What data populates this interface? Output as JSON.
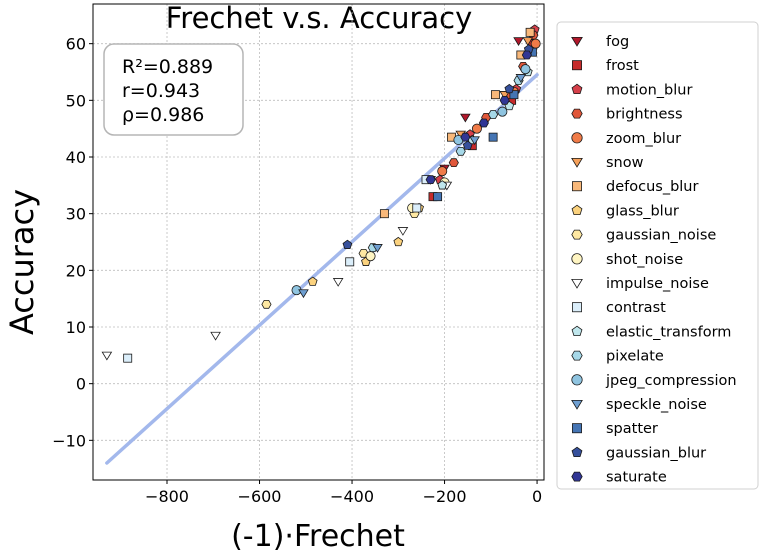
{
  "chart_data": {
    "type": "scatter",
    "title": "Frechet  v.s.  Accuracy",
    "xlabel": "(-1)·Frechet",
    "ylabel": "Accuracy",
    "xlim": [
      -960,
      15
    ],
    "ylim": [
      -17,
      67
    ],
    "xticks": [
      -800,
      -600,
      -400,
      -200,
      0
    ],
    "xtick_labels": [
      "−800",
      "−600",
      "−400",
      "−200",
      "0"
    ],
    "yticks": [
      -10,
      0,
      10,
      20,
      30,
      40,
      50,
      60
    ],
    "ytick_labels": [
      "−10",
      "0",
      "10",
      "20",
      "30",
      "40",
      "50",
      "60"
    ],
    "grid": true,
    "legend_position": "outside-right",
    "stats": [
      "R²=0.889",
      "r=0.943",
      "ρ=0.986"
    ],
    "fit_line": {
      "color": "#a3b8ec",
      "x": [
        -930,
        0
      ],
      "y": [
        -14,
        54.5
      ]
    },
    "series": [
      {
        "name": "fog",
        "marker": "triangle-down",
        "color": "#b2182b",
        "points": [
          [
            -12,
            62
          ],
          [
            -40,
            60.5
          ],
          [
            -155,
            47
          ],
          [
            -200,
            38
          ]
        ]
      },
      {
        "name": "frost",
        "marker": "square",
        "color": "#c62b2b",
        "points": [
          [
            -10,
            60
          ],
          [
            -55,
            50
          ],
          [
            -140,
            42
          ],
          [
            -225,
            33
          ]
        ]
      },
      {
        "name": "motion_blur",
        "marker": "pentagon",
        "color": "#d6404a",
        "points": [
          [
            -5,
            62.5
          ],
          [
            -45,
            52
          ],
          [
            -145,
            44
          ],
          [
            -210,
            36
          ]
        ]
      },
      {
        "name": "brightness",
        "marker": "hexagon",
        "color": "#e0573a",
        "points": [
          [
            -8,
            61.5
          ],
          [
            -30,
            56
          ],
          [
            -60,
            51
          ],
          [
            -110,
            47
          ],
          [
            -180,
            39
          ]
        ]
      },
      {
        "name": "zoom_blur",
        "marker": "circle",
        "color": "#f07b48",
        "points": [
          [
            -3,
            60
          ],
          [
            -50,
            51.5
          ],
          [
            -130,
            45
          ],
          [
            -205,
            37.5
          ]
        ]
      },
      {
        "name": "snow",
        "marker": "triangle-down",
        "color": "#f5a05a",
        "points": [
          [
            -20,
            60.5
          ],
          [
            -70,
            51
          ],
          [
            -165,
            44
          ],
          [
            -230,
            36
          ]
        ]
      },
      {
        "name": "defocus_blur",
        "marker": "square",
        "color": "#f8b87a",
        "points": [
          [
            -15,
            62
          ],
          [
            -35,
            58
          ],
          [
            -90,
            51
          ],
          [
            -185,
            43.5
          ],
          [
            -330,
            30
          ]
        ]
      },
      {
        "name": "glass_blur",
        "marker": "pentagon",
        "color": "#fbd27e",
        "points": [
          [
            -255,
            31
          ],
          [
            -300,
            25
          ],
          [
            -370,
            21.5
          ],
          [
            -485,
            18
          ]
        ]
      },
      {
        "name": "gaussian_noise",
        "marker": "hexagon",
        "color": "#fee8a2",
        "points": [
          [
            -265,
            30
          ],
          [
            -375,
            23
          ],
          [
            -585,
            14
          ]
        ]
      },
      {
        "name": "shot_noise",
        "marker": "circle",
        "color": "#fff5c2",
        "points": [
          [
            -200,
            35.5
          ],
          [
            -270,
            31
          ],
          [
            -360,
            22.5
          ]
        ]
      },
      {
        "name": "impulse_noise",
        "marker": "triangle-down",
        "color": "#ffffff",
        "points": [
          [
            -930,
            5
          ],
          [
            -695,
            8.5
          ],
          [
            -430,
            18
          ],
          [
            -290,
            27
          ],
          [
            -195,
            35
          ]
        ]
      },
      {
        "name": "contrast",
        "marker": "square",
        "color": "#dbeefa",
        "points": [
          [
            -885,
            4.5
          ],
          [
            -405,
            21.5
          ],
          [
            -260,
            31
          ],
          [
            -240,
            36
          ]
        ]
      },
      {
        "name": "elastic_transform",
        "marker": "pentagon",
        "color": "#bfe6ec",
        "points": [
          [
            -20,
            55
          ],
          [
            -60,
            49
          ],
          [
            -140,
            43
          ],
          [
            -205,
            35
          ]
        ]
      },
      {
        "name": "pixelate",
        "marker": "hexagon",
        "color": "#a6d8e8",
        "points": [
          [
            -40,
            53.5
          ],
          [
            -95,
            47.5
          ],
          [
            -165,
            41
          ],
          [
            -355,
            24
          ]
        ]
      },
      {
        "name": "jpeg_compression",
        "marker": "circle",
        "color": "#8fc4e0",
        "points": [
          [
            -25,
            55.5
          ],
          [
            -75,
            48
          ],
          [
            -170,
            43
          ],
          [
            -520,
            16.5
          ]
        ]
      },
      {
        "name": "speckle_noise",
        "marker": "triangle-down",
        "color": "#6f9fd1",
        "points": [
          [
            -35,
            54
          ],
          [
            -135,
            43
          ],
          [
            -345,
            24
          ],
          [
            -505,
            16
          ]
        ]
      },
      {
        "name": "spatter",
        "marker": "square",
        "color": "#4575b4",
        "points": [
          [
            -10,
            58.5
          ],
          [
            -50,
            51
          ],
          [
            -95,
            43.5
          ],
          [
            -215,
            33
          ]
        ]
      },
      {
        "name": "gaussian_blur",
        "marker": "pentagon",
        "color": "#36509c",
        "points": [
          [
            -18,
            59
          ],
          [
            -60,
            52
          ],
          [
            -150,
            42
          ],
          [
            -410,
            24.5
          ]
        ]
      },
      {
        "name": "saturate",
        "marker": "hexagon",
        "color": "#313695",
        "points": [
          [
            -22,
            58
          ],
          [
            -70,
            50
          ],
          [
            -115,
            46
          ],
          [
            -155,
            43.5
          ],
          [
            -230,
            36
          ]
        ]
      }
    ]
  }
}
